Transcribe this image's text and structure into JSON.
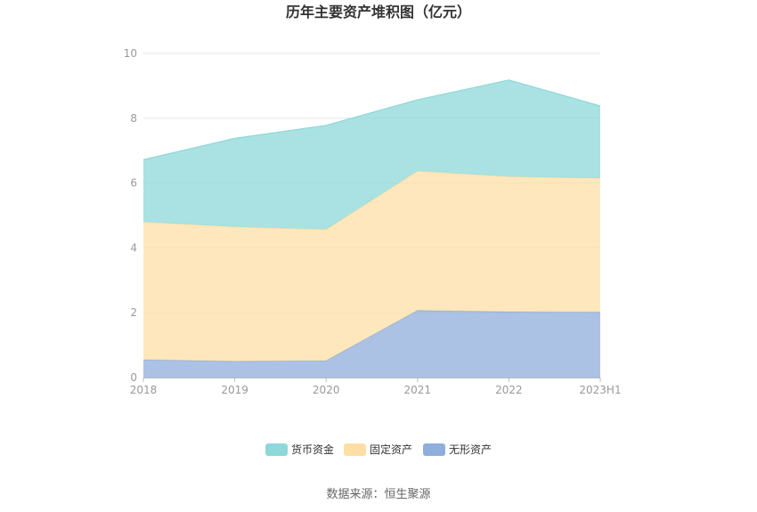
{
  "chart_data": {
    "type": "area",
    "stacked": true,
    "title": "历年主要资产堆积图（亿元）",
    "categories": [
      "2018",
      "2019",
      "2020",
      "2021",
      "2022",
      "2023H1"
    ],
    "ylim": [
      0,
      10
    ],
    "yticks": [
      "0",
      "2",
      "4",
      "6",
      "8",
      "10"
    ],
    "grid": true,
    "legend_position": "bottom",
    "series": [
      {
        "name": "无形资产",
        "color": "#90aedc",
        "values": [
          0.55,
          0.5,
          0.52,
          2.07,
          2.03,
          2.02
        ]
      },
      {
        "name": "固定资产",
        "color": "#fddfa6",
        "values": [
          4.25,
          4.15,
          4.05,
          4.3,
          4.17,
          4.13
        ]
      },
      {
        "name": "货币资金",
        "color": "#8ed8d9",
        "values": [
          1.92,
          2.73,
          3.21,
          2.2,
          2.98,
          2.23
        ]
      }
    ],
    "legend_order": [
      "货币资金",
      "固定资产",
      "无形资产"
    ],
    "source": "数据来源：恒生聚源"
  }
}
